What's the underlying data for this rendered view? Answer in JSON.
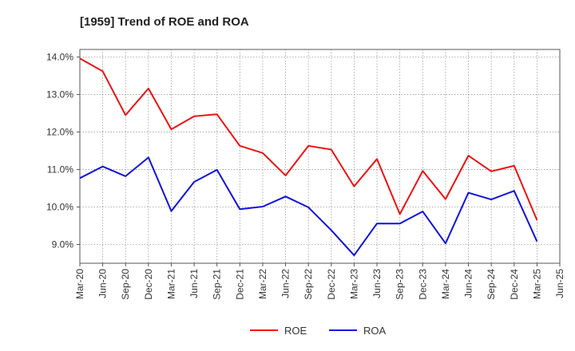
{
  "chart_data": {
    "type": "line",
    "title": "[1959]  Trend of ROE and ROA",
    "xlabel": "",
    "ylabel": "",
    "x": [
      "Mar-20",
      "Jun-20",
      "Sep-20",
      "Dec-20",
      "Mar-21",
      "Jun-21",
      "Sep-21",
      "Dec-21",
      "Mar-22",
      "Jun-22",
      "Sep-22",
      "Dec-22",
      "Mar-23",
      "Jun-23",
      "Sep-23",
      "Dec-23",
      "Mar-24",
      "Jun-24",
      "Sep-24",
      "Dec-24",
      "Mar-25",
      "Jun-25"
    ],
    "ylim": [
      8.5,
      14.2
    ],
    "yticks": [
      9.0,
      10.0,
      11.0,
      12.0,
      13.0,
      14.0
    ],
    "ytick_labels": [
      "9.0%",
      "10.0%",
      "11.0%",
      "12.0%",
      "13.0%",
      "14.0%"
    ],
    "grid": true,
    "legend_position": "bottom",
    "series": [
      {
        "name": "ROE",
        "color": "#ee1111",
        "values": [
          13.96,
          13.62,
          12.45,
          13.16,
          12.07,
          12.42,
          12.47,
          11.63,
          11.44,
          10.84,
          11.63,
          11.53,
          10.55,
          11.28,
          9.81,
          10.96,
          10.21,
          11.37,
          10.95,
          11.1,
          9.65,
          null
        ]
      },
      {
        "name": "ROA",
        "color": "#1111dd",
        "values": [
          10.77,
          11.08,
          10.82,
          11.32,
          9.89,
          10.67,
          10.99,
          9.94,
          10.01,
          10.28,
          9.99,
          9.38,
          8.71,
          9.56,
          9.56,
          9.88,
          9.03,
          10.38,
          10.2,
          10.43,
          9.08,
          null
        ]
      }
    ]
  }
}
